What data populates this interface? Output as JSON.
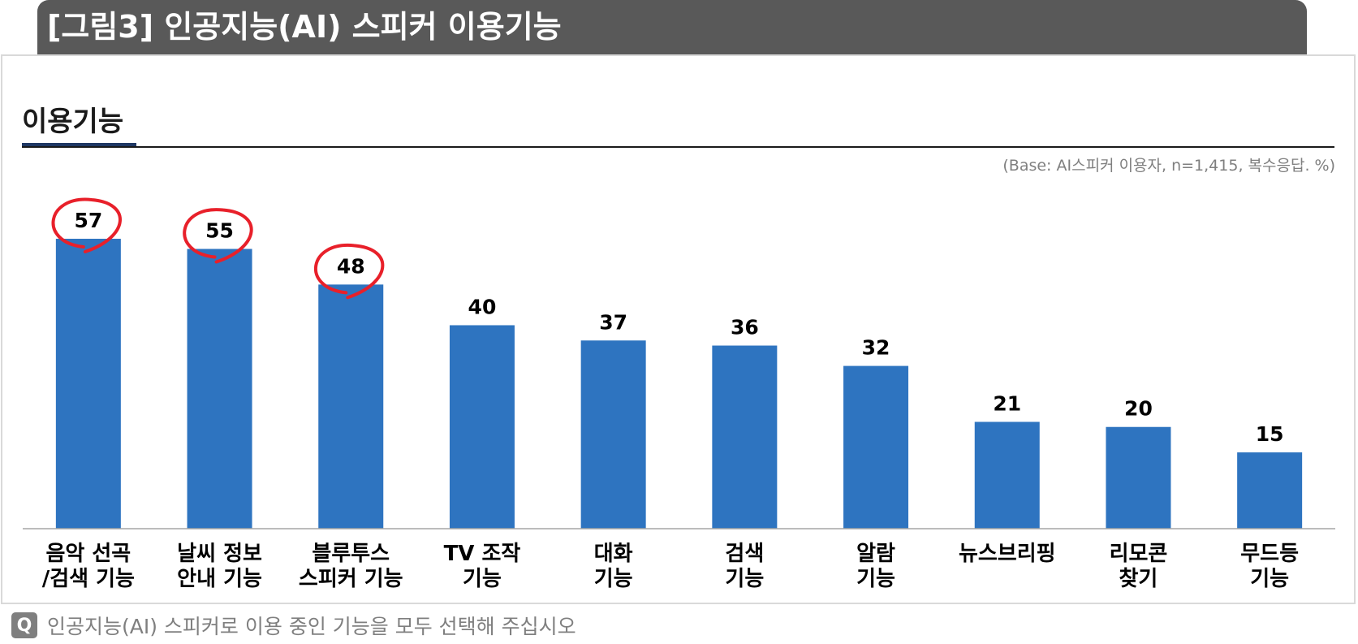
{
  "header": {
    "title": "[그림3] 인공지능(AI) 스피커 이용기능"
  },
  "section": {
    "title": "이용기능"
  },
  "base_note": "(Base: AI스피커 이용자, n=1,415, 복수응답. %)",
  "footer": {
    "q_label": "Q",
    "question": "인공지능(AI) 스피커로 이용 중인 기능을 모두 선택해 주십시오"
  },
  "colors": {
    "bar": "#2e74c0",
    "highlight": "#e8202a",
    "header": "#595959"
  },
  "chart_data": {
    "type": "bar",
    "title": "",
    "xlabel": "",
    "ylabel": "",
    "ylim": [
      0,
      65
    ],
    "grid": false,
    "categories": [
      [
        "음악 선곡",
        "/검색 기능"
      ],
      [
        "날씨 정보",
        "안내 기능"
      ],
      [
        "블루투스",
        "스피커 기능"
      ],
      [
        "TV 조작",
        "기능"
      ],
      [
        "대화",
        "기능"
      ],
      [
        "검색",
        "기능"
      ],
      [
        "알람",
        "기능"
      ],
      [
        "뉴스브리핑"
      ],
      [
        "리모콘",
        "찾기"
      ],
      [
        "무드등",
        "기능"
      ]
    ],
    "values": [
      57,
      55,
      48,
      40,
      37,
      36,
      32,
      21,
      20,
      15
    ],
    "highlighted": [
      0,
      1,
      2
    ]
  }
}
